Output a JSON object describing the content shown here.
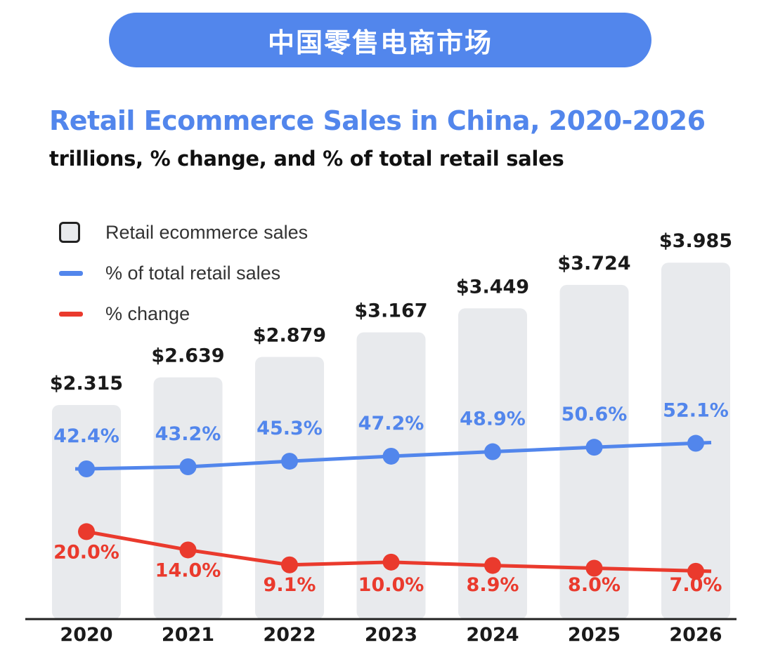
{
  "banner": {
    "title": "中国零售电商市场"
  },
  "chart_data": {
    "type": "bar+line",
    "title": "Retail Ecommerce Sales in China, 2020-2026",
    "subtitle": "trillions, % change, and % of total retail sales",
    "categories": [
      "2020",
      "2021",
      "2022",
      "2023",
      "2024",
      "2025",
      "2026"
    ],
    "series": [
      {
        "name": "Retail ecommerce sales",
        "kind": "bar",
        "values": [
          2.315,
          2.639,
          2.879,
          3.167,
          3.449,
          3.724,
          3.985
        ],
        "labels": [
          "$2.315",
          "$2.639",
          "$2.879",
          "$3.167",
          "$3.449",
          "$3.724",
          "$3.985"
        ],
        "color": "#e8eaed"
      },
      {
        "name": "% of total retail sales",
        "kind": "line",
        "values": [
          42.4,
          43.2,
          45.3,
          47.2,
          48.9,
          50.6,
          52.1
        ],
        "labels": [
          "42.4%",
          "43.2%",
          "45.3%",
          "47.2%",
          "48.9%",
          "50.6%",
          "52.1%"
        ],
        "color": "#5286ec"
      },
      {
        "name": "% change",
        "kind": "line",
        "values": [
          20.0,
          14.0,
          9.1,
          10.0,
          8.9,
          8.0,
          7.0
        ],
        "labels": [
          "20.0%",
          "14.0%",
          "9.1%",
          "10.0%",
          "8.9%",
          "8.0%",
          "7.0%"
        ],
        "color": "#ea3a2d"
      }
    ],
    "legend_position": "top-left",
    "grid": false
  }
}
